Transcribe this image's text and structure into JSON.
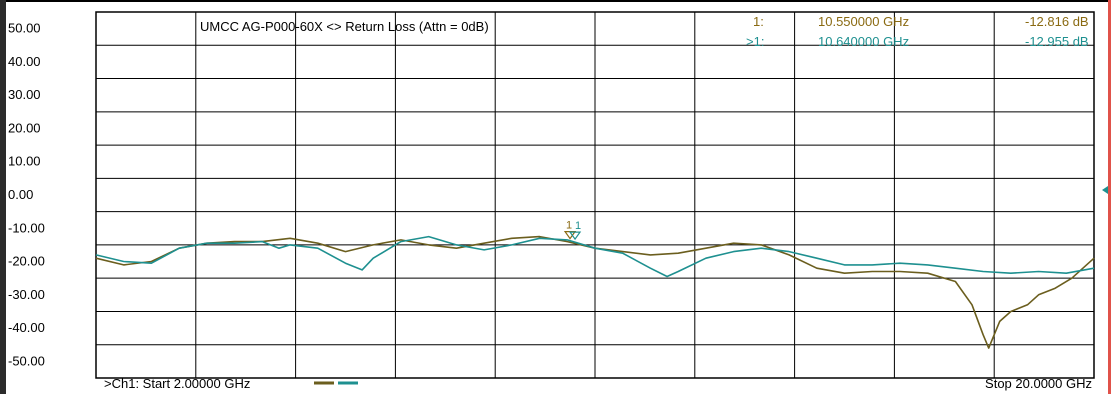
{
  "chart_data": {
    "type": "line",
    "title": "UMCC AG-P000-60X <> Return Loss (Attn = 0dB)",
    "y_ticks": [
      "50.00",
      "40.00",
      "30.00",
      "20.00",
      "10.00",
      "0.00",
      "-10.00",
      "-20.00",
      "-30.00",
      "-40.00",
      "-50.00"
    ],
    "ylim": [
      -50,
      50
    ],
    "x_unit": "GHz",
    "xlim": [
      2.0,
      20.0
    ],
    "grid": true,
    "start_label": ">Ch1: Start  2.00000 GHz",
    "stop_label": "Stop  20.0000 GHz",
    "series": [
      {
        "color": "#6b5e1e",
        "x": [
          2.0,
          2.5,
          3.0,
          3.5,
          4.0,
          4.5,
          5.0,
          5.5,
          6.0,
          6.5,
          7.0,
          7.5,
          8.0,
          8.5,
          9.0,
          9.5,
          10.0,
          10.5,
          11.0,
          11.5,
          12.0,
          12.5,
          13.0,
          13.5,
          14.0,
          14.5,
          15.0,
          15.5,
          16.0,
          16.5,
          17.0,
          17.5,
          17.8,
          18.0,
          18.1,
          18.2,
          18.3,
          18.5,
          18.8,
          19.0,
          19.3,
          19.6,
          20.0
        ],
        "y": [
          -19,
          -21,
          -20,
          -16,
          -14.5,
          -14,
          -14,
          -13,
          -14.5,
          -17,
          -15,
          -13.5,
          -15,
          -16,
          -14.5,
          -13,
          -12.5,
          -14,
          -16,
          -17,
          -18,
          -17.5,
          -16,
          -14.5,
          -15,
          -18,
          -22,
          -23.5,
          -23,
          -23,
          -23.5,
          -26,
          -33,
          -42,
          -46,
          -42,
          -38,
          -35,
          -33,
          -30,
          -28,
          -25,
          -19
        ]
      },
      {
        "color": "#1e9090",
        "x": [
          2.0,
          2.5,
          3.0,
          3.5,
          4.0,
          4.5,
          5.0,
          5.3,
          5.5,
          6.0,
          6.5,
          6.8,
          7.0,
          7.5,
          8.0,
          8.5,
          9.0,
          9.5,
          10.0,
          10.5,
          11.0,
          11.5,
          12.0,
          12.3,
          12.5,
          13.0,
          13.5,
          14.0,
          14.5,
          15.0,
          15.5,
          16.0,
          16.5,
          17.0,
          17.5,
          18.0,
          18.5,
          19.0,
          19.5,
          20.0
        ],
        "y": [
          -18,
          -20,
          -20.5,
          -16,
          -14.5,
          -14.5,
          -14,
          -16,
          -15,
          -16,
          -20.5,
          -22.5,
          -19,
          -14,
          -12.5,
          -15,
          -16.5,
          -15,
          -13,
          -13.5,
          -16,
          -17.5,
          -22,
          -24.5,
          -23,
          -19,
          -17,
          -16,
          -17,
          -19,
          -21,
          -21,
          -20.5,
          -21,
          -22,
          -23,
          -23.5,
          -23,
          -23.5,
          -22
        ]
      }
    ],
    "markers": [
      {
        "trace": "1:",
        "freq": "10.550000 GHz",
        "value": "-12.816 dB",
        "color": "#8a6a12",
        "x": 10.55,
        "y": -12.816
      },
      {
        "trace": ">1:",
        "freq": "10.640000 GHz",
        "value": "-12.955 dB",
        "color": "#1e9090",
        "x": 10.64,
        "y": -12.955
      }
    ],
    "marker_symbol": "1"
  }
}
